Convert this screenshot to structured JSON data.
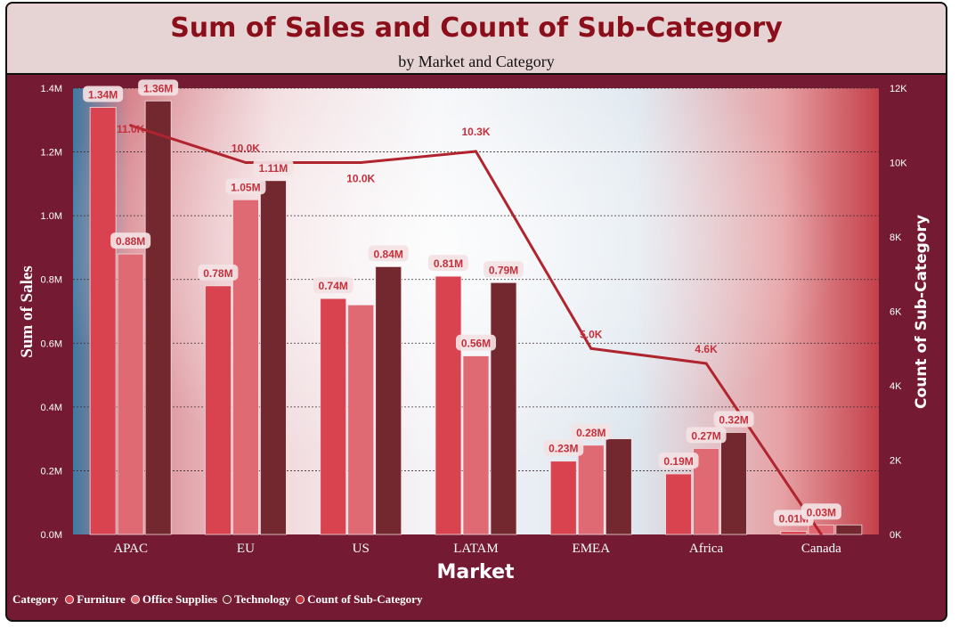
{
  "title": "Sum of Sales and Count of Sub-Category",
  "subtitle": "by Market and Category",
  "legend": {
    "heading": "Category",
    "items": [
      {
        "label": "Furniture",
        "color": "#d9434f"
      },
      {
        "label": "Office Supplies",
        "color": "#e06a74"
      },
      {
        "label": "Technology",
        "color": "#73282f"
      },
      {
        "label": "Count of Sub-Category",
        "color": "#c4303c"
      }
    ]
  },
  "chart_data": {
    "type": "bar",
    "xlabel": "Market",
    "ylabel": "Sum of Sales",
    "y2label": "Count of Sub-Category",
    "categories": [
      "APAC",
      "EU",
      "US",
      "LATAM",
      "EMEA",
      "Africa",
      "Canada"
    ],
    "ylim": [
      0,
      1.4
    ],
    "y_ticks": [
      "0.0M",
      "0.2M",
      "0.4M",
      "0.6M",
      "0.8M",
      "1.0M",
      "1.2M",
      "1.4M"
    ],
    "y2lim": [
      0,
      12
    ],
    "y2_ticks": [
      "0K",
      "2K",
      "4K",
      "6K",
      "8K",
      "10K",
      "12K"
    ],
    "grid": true,
    "legend_position": "bottom-left",
    "series": [
      {
        "name": "Furniture",
        "color": "#d9434f",
        "values": [
          1.34,
          0.78,
          0.74,
          0.81,
          0.23,
          0.19,
          0.01
        ],
        "labels": [
          "1.34M",
          "0.78M",
          "0.74M",
          "0.81M",
          "0.23M",
          "0.19M",
          "0.01M"
        ]
      },
      {
        "name": "Office Supplies",
        "color": "#e06a74",
        "values": [
          0.88,
          1.05,
          0.72,
          0.56,
          0.28,
          0.27,
          0.03
        ],
        "labels": [
          "0.88M",
          "1.05M",
          "",
          "0.56M",
          "0.28M",
          "0.27M",
          "0.03M"
        ]
      },
      {
        "name": "Technology",
        "color": "#73282f",
        "values": [
          1.36,
          1.11,
          0.84,
          0.79,
          0.3,
          0.32,
          0.03
        ],
        "labels": [
          "1.36M",
          "1.11M",
          "0.84M",
          "0.79M",
          "",
          "0.32M",
          ""
        ]
      }
    ],
    "line": {
      "name": "Count of Sub-Category",
      "color": "#b0242e",
      "axis": "right",
      "values": [
        11.0,
        10.0,
        10.0,
        10.3,
        5.0,
        4.6,
        0.0
      ],
      "labels": [
        "11.0K",
        "10.0K",
        "10.0K",
        "10.3K",
        "5.0K",
        "4.6K",
        ""
      ]
    }
  }
}
